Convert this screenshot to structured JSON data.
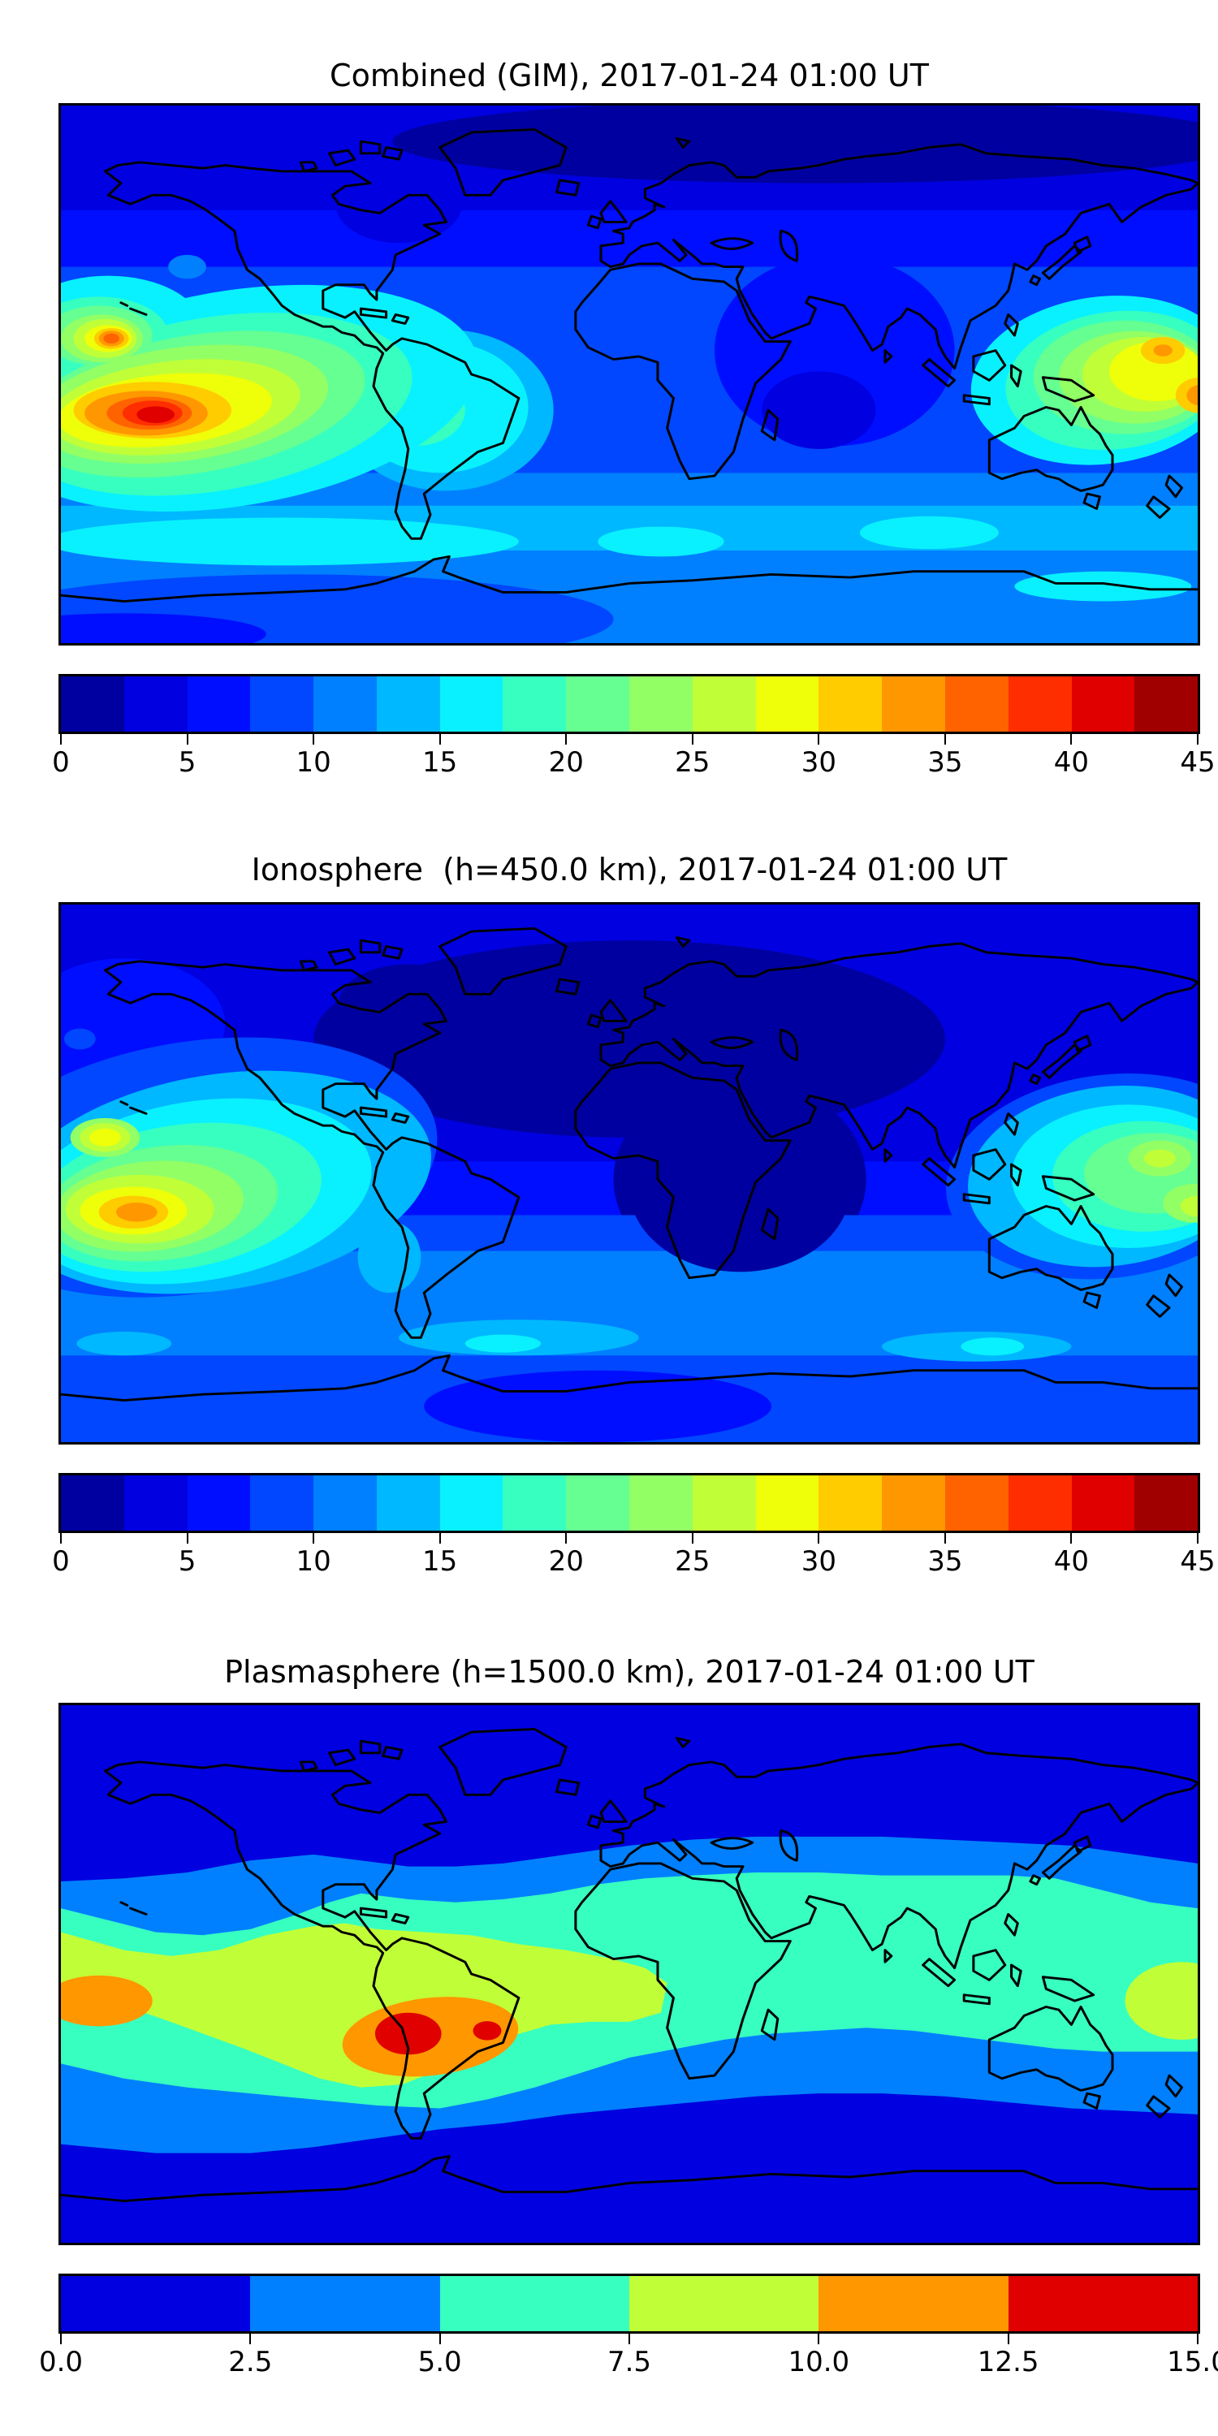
{
  "figure": {
    "background": "#ffffff",
    "projection": "equirectangular world map with black coastlines",
    "accent_black": "#000000"
  },
  "panels": [
    {
      "title": "Combined (GIM), 2017-01-24 01:00 UT",
      "colorbar": {
        "min": 0,
        "max": 45,
        "segment_step": 2.5,
        "n_segments": 18,
        "tick_labels": [
          "0",
          "5",
          "10",
          "15",
          "20",
          "25",
          "30",
          "35",
          "40",
          "45"
        ],
        "colors": [
          "#0000A0",
          "#0000E0",
          "#000EFF",
          "#0047FF",
          "#0080FF",
          "#00B8FF",
          "#09F1FF",
          "#37FFC0",
          "#65FF92",
          "#92FF65",
          "#C0FF37",
          "#EEFF09",
          "#FFCC00",
          "#FF9700",
          "#FF6300",
          "#FF2E00",
          "#E00000",
          "#A00000"
        ]
      }
    },
    {
      "title": "Ionosphere  (h=450.0 km), 2017-01-24 01:00 UT",
      "colorbar": {
        "min": 0,
        "max": 45,
        "segment_step": 2.5,
        "n_segments": 18,
        "tick_labels": [
          "0",
          "5",
          "10",
          "15",
          "20",
          "25",
          "30",
          "35",
          "40",
          "45"
        ],
        "colors": [
          "#0000A0",
          "#0000E0",
          "#000EFF",
          "#0047FF",
          "#0080FF",
          "#00B8FF",
          "#09F1FF",
          "#37FFC0",
          "#65FF92",
          "#92FF65",
          "#C0FF37",
          "#EEFF09",
          "#FFCC00",
          "#FF9700",
          "#FF6300",
          "#FF2E00",
          "#E00000",
          "#A00000"
        ]
      }
    },
    {
      "title": "Plasmasphere (h=1500.0 km), 2017-01-24 01:00 UT",
      "colorbar": {
        "min": 0,
        "max": 15,
        "segment_step": 2.5,
        "n_segments": 6,
        "tick_labels": [
          "0.0",
          "2.5",
          "5.0",
          "7.5",
          "10.0",
          "12.5",
          "15.0"
        ],
        "colors": [
          "#0000E0",
          "#0080FF",
          "#37FFC0",
          "#C0FF37",
          "#FF9700",
          "#E00000"
        ]
      }
    }
  ],
  "chart_data": [
    {
      "type": "heatmap",
      "subtype": "filled-contour world map, jet colormap",
      "title": "Combined (GIM), 2017-01-24 01:00 UT",
      "colorbar_range": [
        0,
        45
      ],
      "contour_interval": 2.5,
      "tick_labels": [
        "0",
        "5",
        "10",
        "15",
        "20",
        "25",
        "30",
        "35",
        "40",
        "45"
      ],
      "lon_range": [
        -180,
        180
      ],
      "lat_range": [
        -90,
        90
      ],
      "features": [
        {
          "name": "south-pacific-EIA-crest",
          "lon": -150,
          "lat": -13,
          "peak_value": 44
        },
        {
          "name": "north-pacific-EIA-crest",
          "lon": -164,
          "lat": 12,
          "peak_value": 39
        },
        {
          "name": "west-pacific-enhancement",
          "lon": 168,
          "lat": 4,
          "peak_value": 37
        },
        {
          "name": "south-america-moderate-band",
          "lon": -60,
          "lat": -12,
          "value": 18
        },
        {
          "name": "arctic-minimum-band",
          "lon": 60,
          "lat": 78,
          "value": 2
        },
        {
          "name": "indian-ocean-low",
          "lon": 60,
          "lat": -10,
          "value": 4
        },
        {
          "name": "southern-ocean-cyan-band",
          "lat": -55,
          "value": 16
        }
      ]
    },
    {
      "type": "heatmap",
      "subtype": "filled-contour world map, jet colormap",
      "title": "Ionosphere  (h=450.0 km), 2017-01-24 01:00 UT",
      "colorbar_range": [
        0,
        45
      ],
      "contour_interval": 2.5,
      "tick_labels": [
        "0",
        "5",
        "10",
        "15",
        "20",
        "25",
        "30",
        "35",
        "40",
        "45"
      ],
      "lon_range": [
        -180,
        180
      ],
      "lat_range": [
        -90,
        90
      ],
      "features": [
        {
          "name": "south-pacific-EIA-crest",
          "lon": -156,
          "lat": -13,
          "peak_value": 34
        },
        {
          "name": "north-pacific-EIA-crest",
          "lon": -166,
          "lat": 12,
          "peak_value": 29
        },
        {
          "name": "west-pacific-enhancement",
          "lon": 172,
          "lat": -3,
          "peak_value": 27
        },
        {
          "name": "eurasia-atlantic-minimum",
          "lon": 10,
          "lat": 45,
          "value": 2
        },
        {
          "name": "africa-indian-ocean-minimum",
          "lon": 35,
          "lat": -2,
          "value": 2
        },
        {
          "name": "southern-ocean-band",
          "lat": -55,
          "value": 13
        }
      ]
    },
    {
      "type": "heatmap",
      "subtype": "filled-contour world map, jet colormap",
      "title": "Plasmasphere (h=1500.0 km), 2017-01-24 01:00 UT",
      "colorbar_range": [
        0,
        15
      ],
      "contour_interval": 2.5,
      "tick_labels": [
        "0.0",
        "2.5",
        "5.0",
        "7.5",
        "10.0",
        "12.5",
        "15.0"
      ],
      "lon_range": [
        -180,
        180
      ],
      "lat_range": [
        -90,
        90
      ],
      "features": [
        {
          "name": "south-america-plasmaspheric-peak",
          "lon": -70,
          "lat": -20,
          "peak_value": 14.5
        },
        {
          "name": "brazil-secondary-red-core",
          "lon": -45,
          "lat": -19,
          "peak_value": 13.5
        },
        {
          "name": "west-pacific-orange-patch",
          "lon": -168,
          "lat": -9,
          "peak_value": 11.5
        },
        {
          "name": "dateline-yellow-green-patch",
          "lon": 174,
          "lat": -9,
          "value": 8.5
        },
        {
          "name": "equatorial-mint-band",
          "lat_range": [
            -25,
            33
          ],
          "value": 6
        },
        {
          "name": "polar-dark-blue-caps",
          "value": 1.5
        }
      ]
    }
  ]
}
